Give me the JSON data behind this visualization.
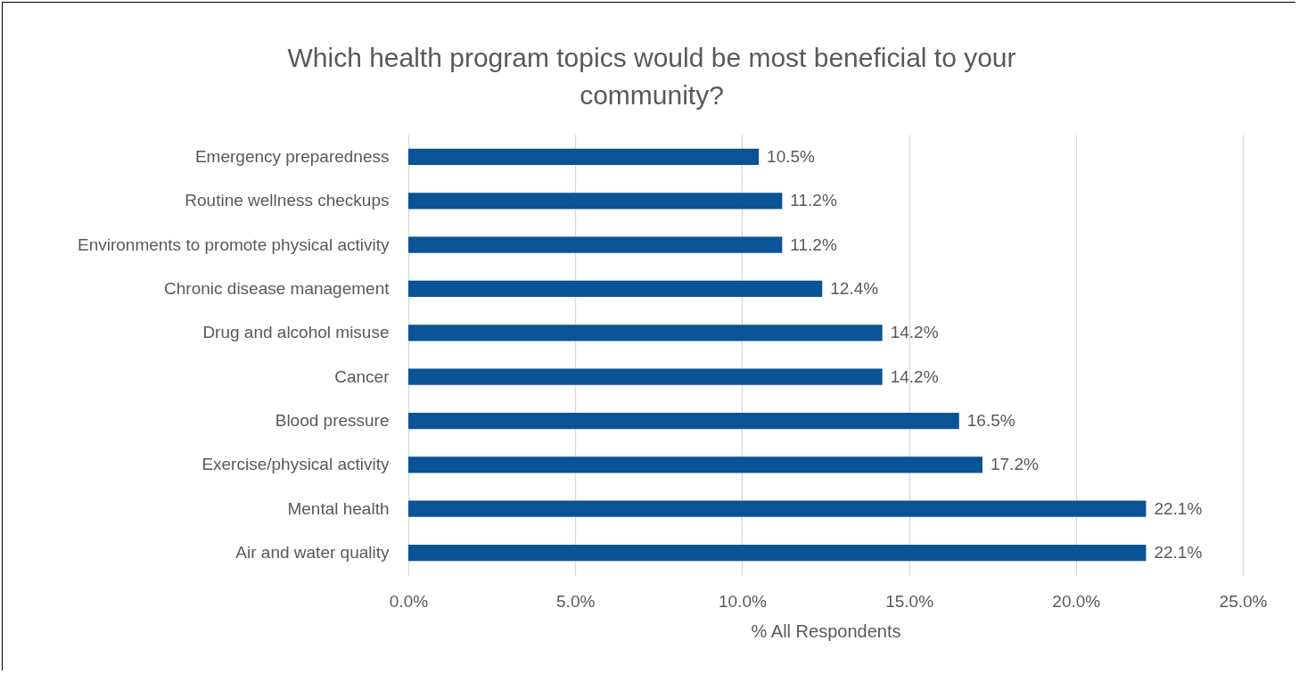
{
  "chart_data": {
    "type": "bar",
    "orientation": "horizontal",
    "title": "Which health program topics would be most beneficial to your community?",
    "xlabel": "% All Respondents",
    "categories": [
      "Emergency preparedness",
      "Routine wellness checkups",
      "Environments to promote physical activity",
      "Chronic disease management",
      "Drug and alcohol misuse",
      "Cancer",
      "Blood pressure",
      "Exercise/physical activity",
      "Mental health",
      "Air and water quality"
    ],
    "values": [
      10.5,
      11.2,
      11.2,
      12.4,
      14.2,
      14.2,
      16.5,
      17.2,
      22.1,
      22.1
    ],
    "value_labels": [
      "10.5%",
      "11.2%",
      "11.2%",
      "12.4%",
      "14.2%",
      "14.2%",
      "16.5%",
      "17.2%",
      "22.1%",
      "22.1%"
    ],
    "color": "#0a5396",
    "xlim": [
      0,
      25
    ],
    "xticks": [
      {
        "value": 0,
        "label": "0.0%"
      },
      {
        "value": 5,
        "label": "5.0%"
      },
      {
        "value": 10,
        "label": "10.0%"
      },
      {
        "value": 15,
        "label": "15.0%"
      },
      {
        "value": 20,
        "label": "20.0%"
      },
      {
        "value": 25,
        "label": "25.0%"
      }
    ],
    "grid": "x"
  }
}
